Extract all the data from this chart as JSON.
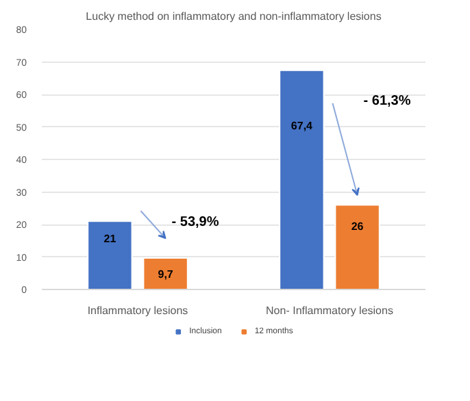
{
  "chart_data": {
    "type": "bar",
    "title": "Lucky method on inflammatory and non-inflammatory lesions",
    "categories": [
      "Inflammatory lesions",
      "Non- Inflammatory lesions"
    ],
    "series": [
      {
        "name": "Inclusion",
        "color": "#4472c4",
        "values": [
          21,
          67.4
        ],
        "value_labels": [
          "21",
          "67,4"
        ]
      },
      {
        "name": "12 months",
        "color": "#ed7d31",
        "values": [
          9.7,
          26
        ],
        "value_labels": [
          "9,7",
          "26"
        ]
      }
    ],
    "ylim": [
      0,
      80
    ],
    "yticks": [
      0,
      10,
      20,
      30,
      40,
      50,
      60,
      70,
      80
    ],
    "grid": "y",
    "legend": "bottom",
    "annotations": [
      "- 53,9%",
      "- 61,3%"
    ]
  }
}
